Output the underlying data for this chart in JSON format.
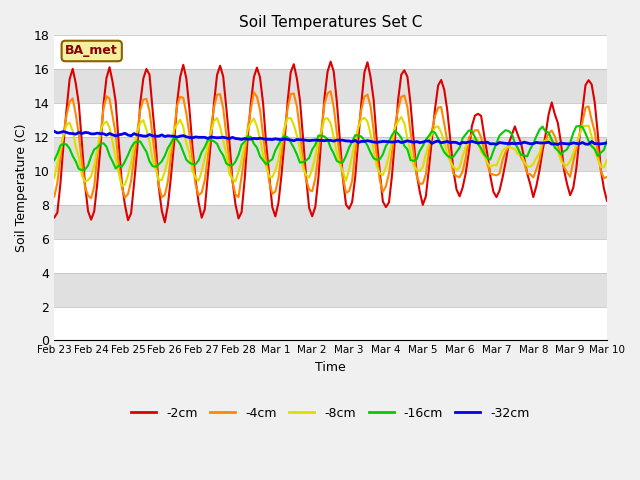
{
  "title": "Soil Temperatures Set C",
  "xlabel": "Time",
  "ylabel": "Soil Temperature (C)",
  "ylim": [
    0,
    18
  ],
  "yticks": [
    0,
    2,
    4,
    6,
    8,
    10,
    12,
    14,
    16,
    18
  ],
  "label_box": "BA_met",
  "series_labels": [
    "-2cm",
    "-4cm",
    "-8cm",
    "-16cm",
    "-32cm"
  ],
  "series_colors": [
    "#dd0000",
    "#ff8800",
    "#dddd00",
    "#00cc00",
    "#0000ee"
  ],
  "series_widths": [
    1.5,
    1.5,
    1.5,
    1.5,
    2.0
  ],
  "xtick_labels": [
    "Feb 23",
    "Feb 24",
    "Feb 25",
    "Feb 26",
    "Feb 27",
    "Feb 28",
    "Mar 1",
    "Mar 2",
    "Mar 3",
    "Mar 4",
    "Mar 5",
    "Mar 6",
    "Mar 7",
    "Mar 8",
    "Mar 9",
    "Mar 10"
  ],
  "background_color": "#f0f0f0",
  "legend_colors": [
    "#dd0000",
    "#ff8800",
    "#dddd00",
    "#00cc00",
    "#0000ee"
  ]
}
